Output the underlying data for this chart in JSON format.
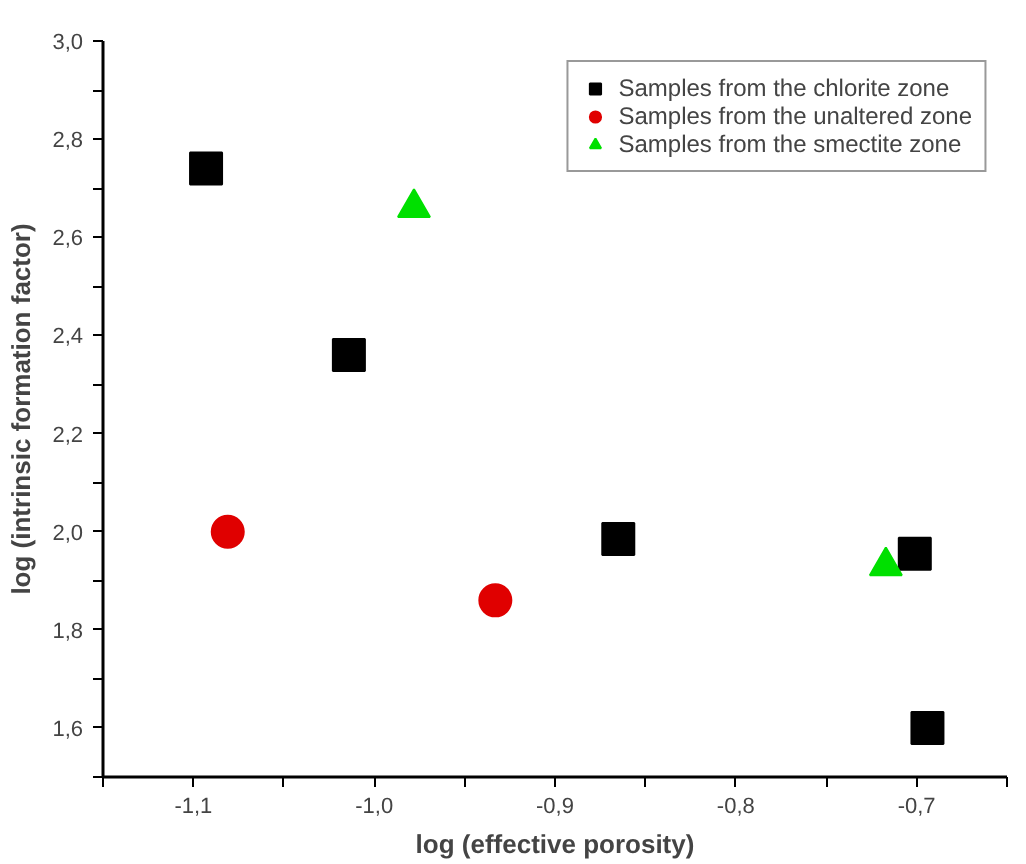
{
  "chart_data": {
    "type": "scatter",
    "xlabel": "log (effective porosity)",
    "ylabel": "log (intrinsic formation factor)",
    "xlim": [
      -1.15,
      -0.65
    ],
    "ylim": [
      1.5,
      3.0
    ],
    "xticks": [
      {
        "value": -1.15,
        "label": null
      },
      {
        "value": -1.1,
        "label": "-1,1"
      },
      {
        "value": -1.05,
        "label": null
      },
      {
        "value": -1.0,
        "label": "-1,0"
      },
      {
        "value": -0.95,
        "label": null
      },
      {
        "value": -0.9,
        "label": "-0,9"
      },
      {
        "value": -0.85,
        "label": null
      },
      {
        "value": -0.8,
        "label": "-0,8"
      },
      {
        "value": -0.75,
        "label": null
      },
      {
        "value": -0.7,
        "label": "-0,7"
      },
      {
        "value": -0.65,
        "label": null
      }
    ],
    "yticks": [
      {
        "value": 1.5,
        "label": null
      },
      {
        "value": 1.6,
        "label": "1,6"
      },
      {
        "value": 1.7,
        "label": null
      },
      {
        "value": 1.8,
        "label": "1,8"
      },
      {
        "value": 1.9,
        "label": null
      },
      {
        "value": 2.0,
        "label": "2,0"
      },
      {
        "value": 2.1,
        "label": null
      },
      {
        "value": 2.2,
        "label": "2,2"
      },
      {
        "value": 2.3,
        "label": null
      },
      {
        "value": 2.4,
        "label": "2,4"
      },
      {
        "value": 2.5,
        "label": null
      },
      {
        "value": 2.6,
        "label": "2,6"
      },
      {
        "value": 2.7,
        "label": null
      },
      {
        "value": 2.8,
        "label": "2,8"
      },
      {
        "value": 2.9,
        "label": null
      },
      {
        "value": 3.0,
        "label": "3,0"
      }
    ],
    "grid": false,
    "legend": "top right",
    "series": [
      {
        "name": "Samples from the chlorite zone",
        "color": "#000000",
        "marker": "square",
        "x": [
          -1.093,
          -1.014,
          -0.865,
          -0.701,
          -0.694
        ],
        "values": [
          2.74,
          2.36,
          1.985,
          1.955,
          1.6
        ]
      },
      {
        "name": "Samples from the unaltered zone",
        "color": "#e00000",
        "marker": "circle",
        "x": [
          -1.081,
          -0.933
        ],
        "values": [
          2.0,
          1.86
        ]
      },
      {
        "name": "Samples from the smectite zone",
        "color": "#00e000",
        "marker": "triangle",
        "x": [
          -0.978,
          -0.717
        ],
        "values": [
          2.66,
          1.93
        ]
      }
    ]
  }
}
